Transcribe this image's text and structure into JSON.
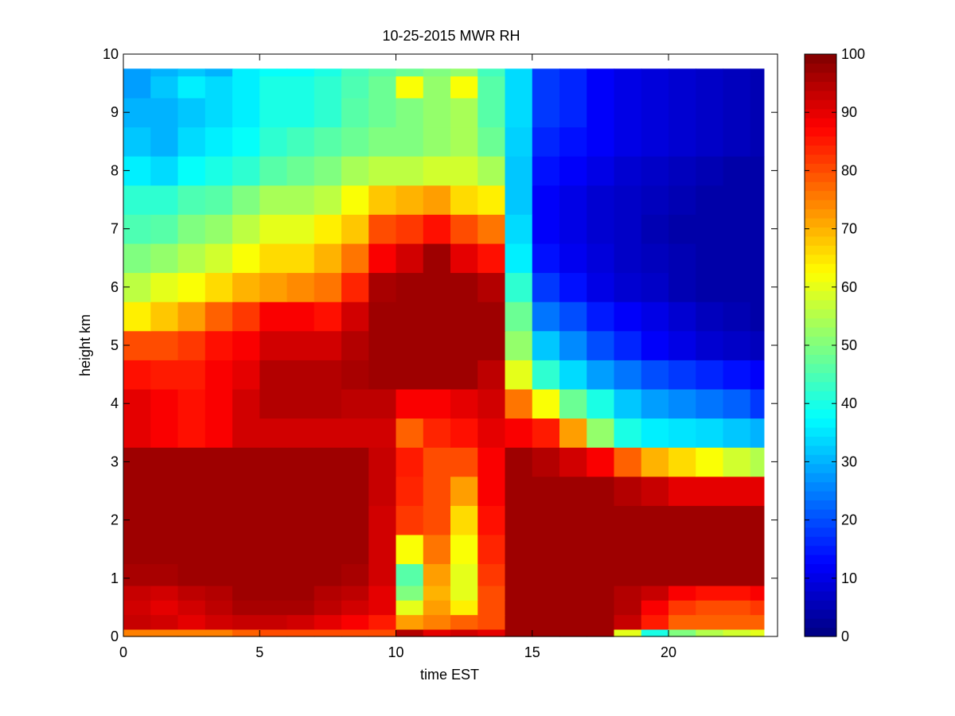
{
  "chart_data": {
    "type": "heatmap",
    "title": "10-25-2015 MWR RH",
    "xlabel": "time EST",
    "ylabel": "height km",
    "xlim": [
      0,
      24
    ],
    "ylim": [
      0,
      10
    ],
    "x_ticks": [
      0,
      5,
      10,
      15,
      20
    ],
    "y_ticks": [
      0,
      1,
      2,
      3,
      4,
      5,
      6,
      7,
      8,
      9,
      10
    ],
    "colorbar": {
      "colormap": "jet",
      "range": [
        0,
        100
      ],
      "ticks": [
        0,
        10,
        20,
        30,
        40,
        50,
        60,
        70,
        80,
        90,
        100
      ]
    },
    "x_range_data": [
      0,
      23.5
    ],
    "y_range_data": [
      0,
      9.75
    ],
    "x_centers": [
      0.5,
      1.5,
      2.5,
      3.5,
      4.5,
      5.5,
      6.5,
      7.5,
      8.5,
      9.5,
      10.5,
      11.5,
      12.5,
      13.5,
      14.5,
      15.5,
      16.5,
      17.5,
      18.5,
      19.5,
      20.5,
      21.5,
      22.5,
      23.5
    ],
    "heights": [
      0,
      0.25,
      0.5,
      0.75,
      1,
      1.5,
      2,
      2.5,
      3,
      3.5,
      4,
      4.5,
      5,
      5.5,
      6,
      6.5,
      7,
      7.5,
      8,
      8.5,
      9,
      9.5,
      9.75
    ],
    "rh_values": [
      [
        75,
        75,
        75,
        75,
        78,
        80,
        80,
        80,
        80,
        80,
        95,
        90,
        92,
        90,
        97,
        97,
        97,
        97,
        60,
        40,
        50,
        55,
        58,
        60
      ],
      [
        93,
        92,
        90,
        92,
        93,
        93,
        92,
        90,
        88,
        85,
        72,
        75,
        78,
        80,
        97,
        97,
        97,
        97,
        93,
        85,
        78,
        78,
        78,
        78
      ],
      [
        92,
        90,
        92,
        94,
        96,
        96,
        96,
        94,
        92,
        90,
        60,
        72,
        64,
        80,
        97,
        97,
        97,
        97,
        95,
        88,
        82,
        80,
        80,
        82
      ],
      [
        93,
        92,
        94,
        95,
        97,
        97,
        97,
        95,
        94,
        90,
        50,
        70,
        60,
        80,
        97,
        97,
        97,
        97,
        95,
        93,
        88,
        86,
        86,
        88
      ],
      [
        96,
        96,
        97,
        97,
        97,
        97,
        97,
        97,
        96,
        92,
        46,
        72,
        60,
        82,
        97,
        97,
        97,
        97,
        97,
        97,
        97,
        97,
        97,
        97
      ],
      [
        97,
        97,
        97,
        97,
        97,
        97,
        97,
        97,
        97,
        92,
        62,
        76,
        62,
        84,
        97,
        97,
        97,
        97,
        97,
        97,
        97,
        97,
        97,
        97
      ],
      [
        97,
        97,
        97,
        97,
        97,
        97,
        97,
        97,
        97,
        92,
        82,
        80,
        66,
        86,
        97,
        97,
        97,
        97,
        97,
        97,
        97,
        97,
        97,
        97
      ],
      [
        97,
        97,
        97,
        97,
        97,
        97,
        97,
        97,
        97,
        93,
        84,
        80,
        72,
        88,
        97,
        97,
        97,
        97,
        95,
        93,
        90,
        90,
        90,
        90
      ],
      [
        97,
        97,
        97,
        97,
        97,
        97,
        97,
        97,
        97,
        93,
        85,
        80,
        80,
        88,
        97,
        95,
        92,
        88,
        78,
        70,
        66,
        62,
        58,
        55
      ],
      [
        90,
        88,
        86,
        88,
        92,
        92,
        92,
        92,
        92,
        92,
        78,
        84,
        86,
        90,
        88,
        85,
        72,
        52,
        40,
        36,
        35,
        34,
        32,
        30
      ],
      [
        90,
        88,
        86,
        88,
        92,
        95,
        95,
        95,
        94,
        94,
        88,
        88,
        90,
        92,
        76,
        62,
        48,
        40,
        32,
        28,
        26,
        24,
        22,
        18
      ],
      [
        86,
        85,
        85,
        88,
        90,
        95,
        95,
        95,
        96,
        97,
        97,
        97,
        97,
        94,
        60,
        42,
        34,
        28,
        24,
        20,
        18,
        16,
        14,
        12
      ],
      [
        80,
        80,
        82,
        86,
        88,
        92,
        92,
        92,
        95,
        97,
        97,
        97,
        97,
        97,
        52,
        32,
        26,
        20,
        16,
        12,
        10,
        8,
        7,
        6
      ],
      [
        64,
        68,
        72,
        78,
        82,
        88,
        88,
        86,
        92,
        97,
        97,
        97,
        97,
        97,
        48,
        24,
        20,
        15,
        12,
        10,
        8,
        6,
        5,
        4
      ],
      [
        56,
        60,
        62,
        66,
        70,
        72,
        74,
        76,
        84,
        96,
        97,
        97,
        97,
        95,
        42,
        18,
        14,
        10,
        8,
        7,
        5,
        4,
        4,
        4
      ],
      [
        50,
        52,
        55,
        58,
        62,
        66,
        66,
        70,
        76,
        88,
        92,
        97,
        90,
        86,
        36,
        14,
        11,
        9,
        7,
        6,
        5,
        4,
        4,
        4
      ],
      [
        45,
        46,
        50,
        52,
        56,
        60,
        60,
        64,
        68,
        80,
        82,
        86,
        80,
        76,
        34,
        12,
        10,
        8,
        7,
        5,
        4,
        4,
        4,
        4
      ],
      [
        42,
        42,
        45,
        46,
        50,
        54,
        54,
        56,
        62,
        68,
        70,
        72,
        66,
        64,
        32,
        12,
        10,
        8,
        7,
        6,
        5,
        4,
        4,
        4
      ],
      [
        36,
        34,
        38,
        40,
        42,
        46,
        48,
        50,
        54,
        56,
        56,
        58,
        58,
        54,
        32,
        14,
        12,
        10,
        8,
        7,
        6,
        5,
        4,
        4
      ],
      [
        32,
        30,
        34,
        36,
        38,
        42,
        44,
        46,
        48,
        50,
        50,
        52,
        54,
        48,
        33,
        16,
        14,
        12,
        10,
        9,
        8,
        7,
        6,
        5
      ],
      [
        30,
        30,
        32,
        34,
        36,
        40,
        40,
        42,
        46,
        48,
        50,
        52,
        54,
        46,
        34,
        18,
        16,
        12,
        10,
        9,
        8,
        7,
        6,
        5
      ],
      [
        28,
        32,
        36,
        34,
        36,
        40,
        40,
        42,
        45,
        48,
        62,
        52,
        62,
        46,
        34,
        18,
        16,
        12,
        10,
        9,
        8,
        7,
        6,
        5
      ],
      [
        28,
        30,
        32,
        30,
        36,
        38,
        38,
        40,
        44,
        46,
        48,
        50,
        52,
        44,
        34,
        18,
        16,
        12,
        10,
        9,
        8,
        7,
        6,
        5
      ]
    ]
  }
}
